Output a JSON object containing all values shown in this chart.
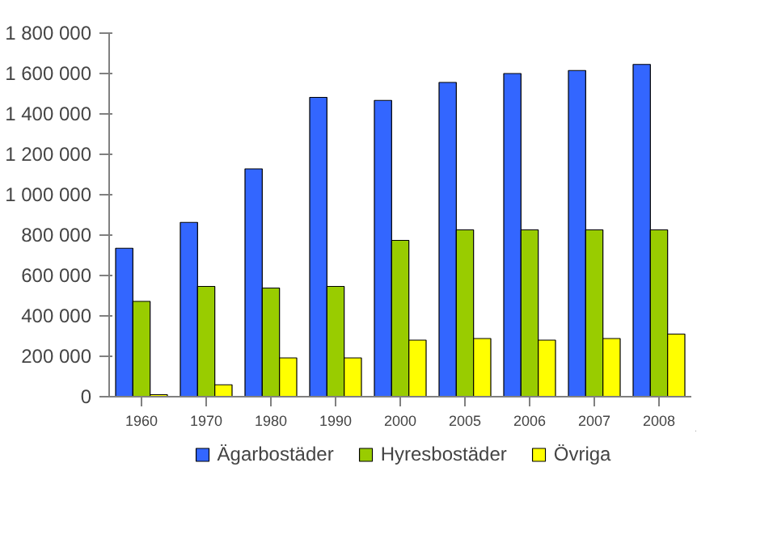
{
  "chart_data": {
    "type": "bar",
    "categories": [
      "1960",
      "1970",
      "1980",
      "1990",
      "2000",
      "2005",
      "2006",
      "2007",
      "2008"
    ],
    "series": [
      {
        "name": "Ägarbostäder",
        "color": "#3366ff",
        "values": [
          735000,
          863000,
          1128000,
          1482000,
          1467000,
          1556000,
          1600000,
          1615000,
          1645000
        ]
      },
      {
        "name": "Hyresbostäder",
        "color": "#99cc00",
        "values": [
          472000,
          546000,
          538000,
          546000,
          774000,
          826000,
          826000,
          826000,
          826000
        ]
      },
      {
        "name": "Övriga",
        "color": "#ffff00",
        "values": [
          10000,
          59000,
          192000,
          192000,
          280000,
          288000,
          280000,
          288000,
          310000
        ]
      }
    ],
    "ylim": [
      0,
      1800000
    ],
    "yticks": [
      {
        "value": 0,
        "label": "0"
      },
      {
        "value": 200000,
        "label": "200 000"
      },
      {
        "value": 400000,
        "label": "400 000"
      },
      {
        "value": 600000,
        "label": "600 000"
      },
      {
        "value": 800000,
        "label": "800 000"
      },
      {
        "value": 1000000,
        "label": "1 000 000"
      },
      {
        "value": 1200000,
        "label": "1 200 000"
      },
      {
        "value": 1400000,
        "label": "1 400 000"
      },
      {
        "value": 1600000,
        "label": "1 600 000"
      },
      {
        "value": 1800000,
        "label": "1 800 000"
      }
    ],
    "grid": false,
    "legend": "bottom"
  }
}
